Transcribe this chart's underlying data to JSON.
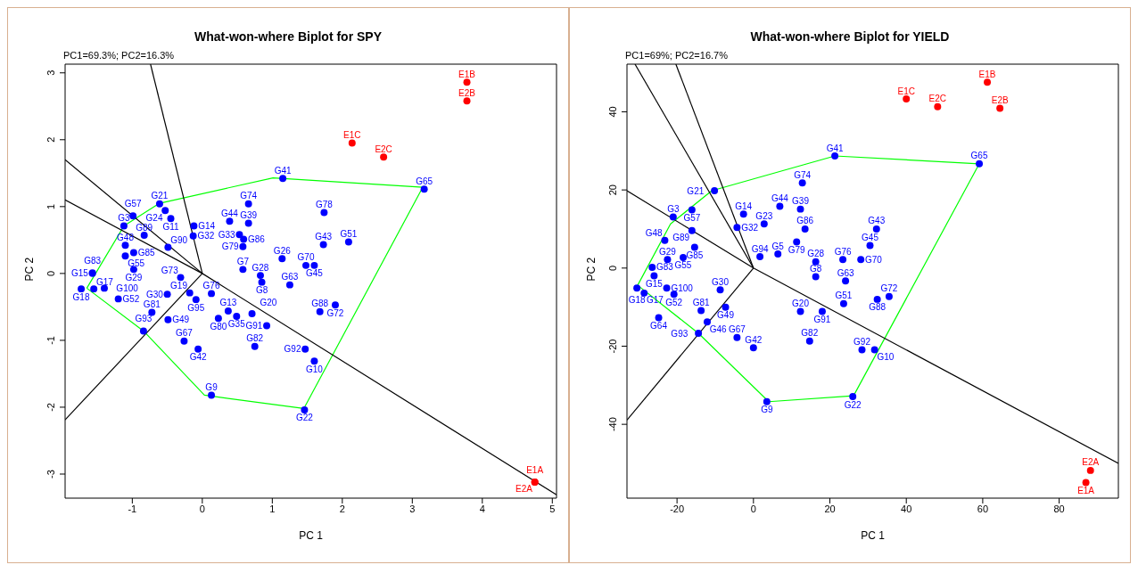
{
  "chart_data": [
    {
      "type": "scatter",
      "title": "What-won-where Biplot for SPY",
      "xlabel": "PC 1",
      "ylabel": "PC 2",
      "annotations": [
        "PC1=69.3%; PC2=16.3%"
      ],
      "xlim": [
        -1.96,
        5.06
      ],
      "ylim": [
        -3.36,
        3.13
      ],
      "xticks": [
        -1,
        0,
        1,
        2,
        3,
        4,
        5
      ],
      "yticks": [
        -3,
        -2,
        -1,
        0,
        1,
        2,
        3
      ],
      "series": [
        {
          "type": "line",
          "color": "#00ff00",
          "x": [
            -1.65,
            -1.12,
            -0.61,
            1.01,
            3.15
          ],
          "values": [
            -0.22,
            0.71,
            1.05,
            1.43,
            1.29
          ]
        },
        {
          "type": "line",
          "color": "#00ff00",
          "x": [
            -1.65,
            -0.84,
            0.03,
            1.45,
            3.15
          ],
          "values": [
            -0.22,
            -0.86,
            -1.82,
            -2.02,
            1.29
          ]
        },
        {
          "type": "line",
          "color": "#000000",
          "x": [
            0,
            -0.74
          ],
          "values": [
            0,
            3.13
          ]
        },
        {
          "type": "line",
          "color": "#000000",
          "x": [
            0,
            -1.96
          ],
          "values": [
            0,
            1.7
          ]
        },
        {
          "type": "line",
          "color": "#000000",
          "x": [
            -1.96,
            0,
            5.06
          ],
          "values": [
            1.1,
            0,
            -3.31
          ]
        },
        {
          "type": "line",
          "color": "#000000",
          "x": [
            0,
            -1.96
          ],
          "values": [
            0,
            -2.19
          ]
        },
        {
          "type": "scatter",
          "marker": "circle",
          "color": "#0000ff",
          "x": [
            3.17,
            1.15,
            1.46,
            0.13,
            1.6,
            1.47,
            0.75,
            1.68,
            1.9,
            0.92,
            0.71,
            0.37,
            0.49,
            0.23,
            1.25,
            1.14,
            0.85,
            0.83,
            0.58,
            1.73,
            2.09,
            1.74,
            1.48,
            1.6,
            0.66,
            0.66,
            0.39,
            0.53,
            0.59,
            0.58,
            -0.26,
            -0.06,
            -0.09,
            0.13,
            -0.18,
            -0.5,
            -0.31,
            -0.49,
            -0.13,
            -0.12,
            -0.45,
            -0.61,
            -0.53,
            -0.99,
            -1.12,
            -0.83,
            -1.1,
            -0.98,
            -1.1,
            -0.98,
            -1.57,
            -1.57,
            -1.73,
            -1.55,
            -1.4,
            -1.2,
            -0.72,
            -0.49,
            -0.84
          ],
          "values": [
            1.26,
            1.42,
            -2.04,
            -1.82,
            -1.31,
            -1.13,
            -1.09,
            -0.57,
            -0.47,
            -0.78,
            -0.6,
            -0.56,
            -0.64,
            -0.67,
            -0.17,
            0.22,
            -0.13,
            -0.03,
            0.06,
            0.43,
            0.47,
            0.91,
            0.12,
            0.12,
            1.04,
            0.75,
            0.78,
            0.58,
            0.51,
            0.4,
            -1.01,
            -1.13,
            -0.39,
            -0.3,
            -0.29,
            -0.31,
            -0.06,
            0.39,
            0.56,
            0.71,
            0.82,
            1.04,
            0.94,
            0.86,
            0.71,
            0.57,
            0.42,
            0.31,
            0.26,
            0.06,
            0.01,
            0.0,
            -0.23,
            -0.23,
            -0.22,
            -0.38,
            -0.58,
            -0.69,
            -0.86
          ],
          "value_labels": [
            "G65",
            "G41",
            "G22",
            "G9",
            "G10",
            "G92",
            "G82",
            "G88",
            "G72",
            "G91",
            "G20",
            "G13",
            "G35",
            "G80",
            "G63",
            "G26",
            "G8",
            "G28",
            "G7",
            "G43",
            "G51",
            "G78",
            "G70",
            "G45",
            "G74",
            "G39",
            "G44",
            "G33",
            "G86",
            "G79",
            "G67",
            "G42",
            "G95",
            "G76",
            "G19",
            "G30",
            "G73",
            "G90",
            "G32",
            "G14",
            "G11",
            "G21",
            "G24",
            "G57",
            "G3",
            "G89",
            "G48",
            "G85",
            "G55",
            "G29",
            "G83",
            "G15",
            "G18",
            "G17",
            "G100",
            "G52",
            "G81",
            "G49",
            "G93"
          ]
        },
        {
          "type": "scatter",
          "marker": "circle",
          "color": "#ff0000",
          "x": [
            3.78,
            3.78,
            2.14,
            2.59,
            4.75,
            4.75
          ],
          "values": [
            2.86,
            2.58,
            1.95,
            1.74,
            -3.12,
            -3.12
          ],
          "value_labels": [
            "E1B",
            "E2B",
            "E1C",
            "E2C",
            "E1A",
            "E2A"
          ]
        }
      ]
    },
    {
      "type": "scatter",
      "title": "What-won-where Biplot for YIELD",
      "xlabel": "PC 1",
      "ylabel": "PC 2",
      "annotations": [
        "PC1=69%; PC2=16.7%"
      ],
      "xlim": [
        -33.1,
        95.5
      ],
      "ylim": [
        -58.9,
        52.2
      ],
      "xticks": [
        -20,
        0,
        20,
        40,
        60,
        80
      ],
      "yticks": [
        -40,
        -20,
        0,
        20,
        40
      ],
      "series": [
        {
          "type": "line",
          "color": "#00ff00",
          "x": [
            -30.3,
            -21.7,
            -10.9,
            21.3,
            59.1
          ],
          "values": [
            -4.4,
            11.3,
            19.8,
            28.7,
            26.7
          ]
        },
        {
          "type": "line",
          "color": "#00ff00",
          "x": [
            -30.3,
            -14.4,
            4.0,
            26.2,
            59.1
          ],
          "values": [
            -4.4,
            -16.7,
            -34.2,
            -32.7,
            26.7
          ]
        },
        {
          "type": "line",
          "color": "#000000",
          "x": [
            0,
            -31.0
          ],
          "values": [
            0,
            52.2
          ]
        },
        {
          "type": "line",
          "color": "#000000",
          "x": [
            0,
            -20.3
          ],
          "values": [
            0,
            52.2
          ]
        },
        {
          "type": "line",
          "color": "#000000",
          "x": [
            -33.1,
            0,
            95.5
          ],
          "values": [
            19.8,
            0,
            -50.0
          ]
        },
        {
          "type": "line",
          "color": "#000000",
          "x": [
            0,
            -33.1
          ],
          "values": [
            0,
            -38.9
          ]
        },
        {
          "type": "scatter",
          "marker": "circle",
          "color": "#0000ff",
          "x": [
            59.1,
            21.3,
            12.8,
            -10.2,
            6.9,
            12.3,
            -2.6,
            2.8,
            -4.3,
            -21.0,
            -16.1,
            -16.1,
            -15.4,
            -22.5,
            -18.4,
            -23.2,
            -26.5,
            -26.0,
            -30.5,
            -22.7,
            -28.6,
            -20.8,
            -8.7,
            -7.3,
            -13.7,
            -24.8,
            -12.1,
            -14.4,
            -4.3,
            0,
            14.7,
            3.5,
            26.0,
            28.4,
            31.7,
            35.5,
            32.4,
            23.6,
            18.0,
            12.3,
            24.1,
            16.3,
            16.3,
            23.4,
            28.1,
            30.5,
            32.2,
            11.3,
            6.4,
            13.5,
            1.7
          ],
          "values": [
            26.7,
            28.7,
            21.8,
            19.8,
            15.8,
            15.1,
            13.8,
            11.3,
            10.4,
            13.1,
            14.9,
            9.6,
            5.3,
            2.2,
            2.7,
            7.1,
            0.2,
            -2.0,
            -5.1,
            -5.1,
            -6.4,
            -6.7,
            -5.6,
            -10.0,
            -10.9,
            -12.7,
            -13.8,
            -16.7,
            -17.8,
            -20.4,
            -18.7,
            -34.2,
            -32.9,
            -20.9,
            -20.9,
            -7.3,
            -8.0,
            -9.1,
            -11.1,
            -11.1,
            -3.3,
            -2.2,
            1.6,
            2.2,
            2.2,
            5.8,
            10.0,
            6.7,
            3.6,
            10.0,
            2.9
          ],
          "value_labels": [
            "G65",
            "G41",
            "G74",
            "G21",
            "G44",
            "G39",
            "G14",
            "G23",
            "G32",
            "G3",
            "G57",
            "G89",
            "G85",
            "G29",
            "G55",
            "G48",
            "G83",
            "G15",
            "G18",
            "G100",
            "G17",
            "G52",
            "G30",
            "G49",
            "G81",
            "G64",
            "G46",
            "G93",
            "G67",
            "G42",
            "G82",
            "G9",
            "G22",
            "G92",
            "G10",
            "G72",
            "G88",
            "G51",
            "G91",
            "G20",
            "G63",
            "G8",
            "G28",
            "G76",
            "G70",
            "G45",
            "G43",
            "G79",
            "G5",
            "G86",
            "G94"
          ]
        },
        {
          "type": "scatter",
          "marker": "circle",
          "color": "#ff0000",
          "x": [
            61.2,
            64.5,
            40.0,
            48.2,
            88.2,
            87.0
          ],
          "values": [
            47.6,
            40.9,
            43.3,
            41.3,
            -51.8,
            -54.9
          ],
          "value_labels": [
            "E1B",
            "E2B",
            "E1C",
            "E2C",
            "E2A",
            "E1A"
          ]
        }
      ]
    }
  ]
}
